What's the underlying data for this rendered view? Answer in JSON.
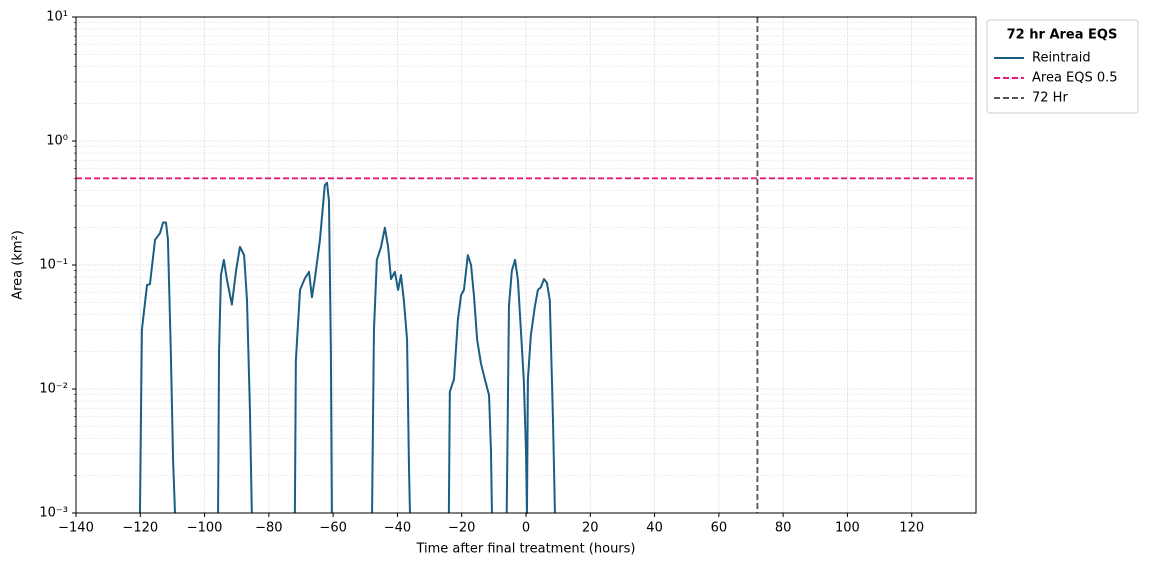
{
  "chart_data": {
    "type": "line",
    "xlabel": "Time after final treatment (hours)",
    "ylabel": "Area (km²)",
    "log_y": true,
    "grid": true,
    "legend_title": "72 hr Area EQS",
    "legend_position": "outside-upper-right",
    "xlim": [
      -140,
      140
    ],
    "ylim": [
      0.001,
      10
    ],
    "xticks": [
      {
        "value": -140,
        "label": "−140"
      },
      {
        "value": -120,
        "label": "−120"
      },
      {
        "value": -100,
        "label": "−100"
      },
      {
        "value": -80,
        "label": "−80"
      },
      {
        "value": -60,
        "label": "−60"
      },
      {
        "value": -40,
        "label": "−40"
      },
      {
        "value": -20,
        "label": "−20"
      },
      0,
      20,
      40,
      60,
      80,
      100,
      120
    ],
    "yticks": [
      {
        "value": 0.001,
        "label": "10⁻³"
      },
      {
        "value": 0.01,
        "label": "10⁻²"
      },
      {
        "value": 0.1,
        "label": "10⁻¹"
      },
      {
        "value": 1,
        "label": "10⁰"
      },
      {
        "value": 10,
        "label": "10¹"
      }
    ],
    "series": [
      {
        "name": "Reintraid",
        "color": "#1b5e84",
        "x": [
          -120.1,
          -119.5,
          -117.9,
          -117,
          -115.4,
          -113.9,
          -112.9,
          -112,
          -111.4,
          -110.5,
          -109.8,
          -109.2,
          null,
          -95.8,
          -95.5,
          -94.9,
          -94,
          -93,
          -91.5,
          -90.2,
          -89,
          -87.7,
          -86.8,
          -85.9,
          -85.3,
          null,
          -71.9,
          -71.6,
          -70.3,
          -68.8,
          -67.5,
          -66.6,
          -65.7,
          -64.1,
          -62.6,
          -61.9,
          -61.3,
          -60.7,
          -60.4,
          null,
          -47.9,
          -47.3,
          -46.4,
          -45.1,
          -43.9,
          -42.9,
          -42,
          -40.8,
          -39.8,
          -38.9,
          -38,
          -37,
          -36.4,
          -36.1,
          null,
          -24,
          -23.7,
          -22.4,
          -21.2,
          -20.2,
          -19.3,
          -18.1,
          -17.1,
          -16.2,
          -15.2,
          -14,
          -12.8,
          -11.5,
          -10.9,
          -10.6,
          null,
          -6,
          -5.3,
          -4.4,
          -3.4,
          -2.5,
          -1.6,
          -0.7,
          0,
          0.3,
          0.6,
          1.5,
          2.8,
          3.7,
          4.6,
          5.6,
          6.5,
          7.4,
          8.4,
          9
        ],
        "values": [
          0.001,
          0.03,
          0.069,
          0.07,
          0.16,
          0.18,
          0.22,
          0.22,
          0.16,
          0.02,
          0.0027,
          0.001,
          null,
          0.001,
          0.02,
          0.083,
          0.11,
          0.075,
          0.048,
          0.09,
          0.14,
          0.12,
          0.052,
          0.007,
          0.001,
          null,
          0.001,
          0.017,
          0.063,
          0.078,
          0.088,
          0.055,
          0.077,
          0.16,
          0.44,
          0.46,
          0.33,
          0.02,
          0.001,
          null,
          0.001,
          0.03,
          0.11,
          0.14,
          0.2,
          0.14,
          0.077,
          0.088,
          0.063,
          0.083,
          0.052,
          0.025,
          0.0023,
          0.001,
          null,
          0.001,
          0.0095,
          0.012,
          0.036,
          0.057,
          0.063,
          0.12,
          0.1,
          0.057,
          0.025,
          0.016,
          0.012,
          0.0089,
          0.0032,
          0.001,
          null,
          0.001,
          0.047,
          0.09,
          0.11,
          0.075,
          0.03,
          0.012,
          0.0032,
          0.001,
          0.012,
          0.027,
          0.047,
          0.063,
          0.066,
          0.077,
          0.072,
          0.052,
          0.0056,
          0.001
        ]
      }
    ],
    "hlines": [
      {
        "name": "Area EQS 0.5",
        "value": 0.5,
        "color": "#e6197d"
      }
    ],
    "vlines": [
      {
        "name": "72 Hr",
        "value": 72,
        "color": "#555555"
      }
    ]
  }
}
